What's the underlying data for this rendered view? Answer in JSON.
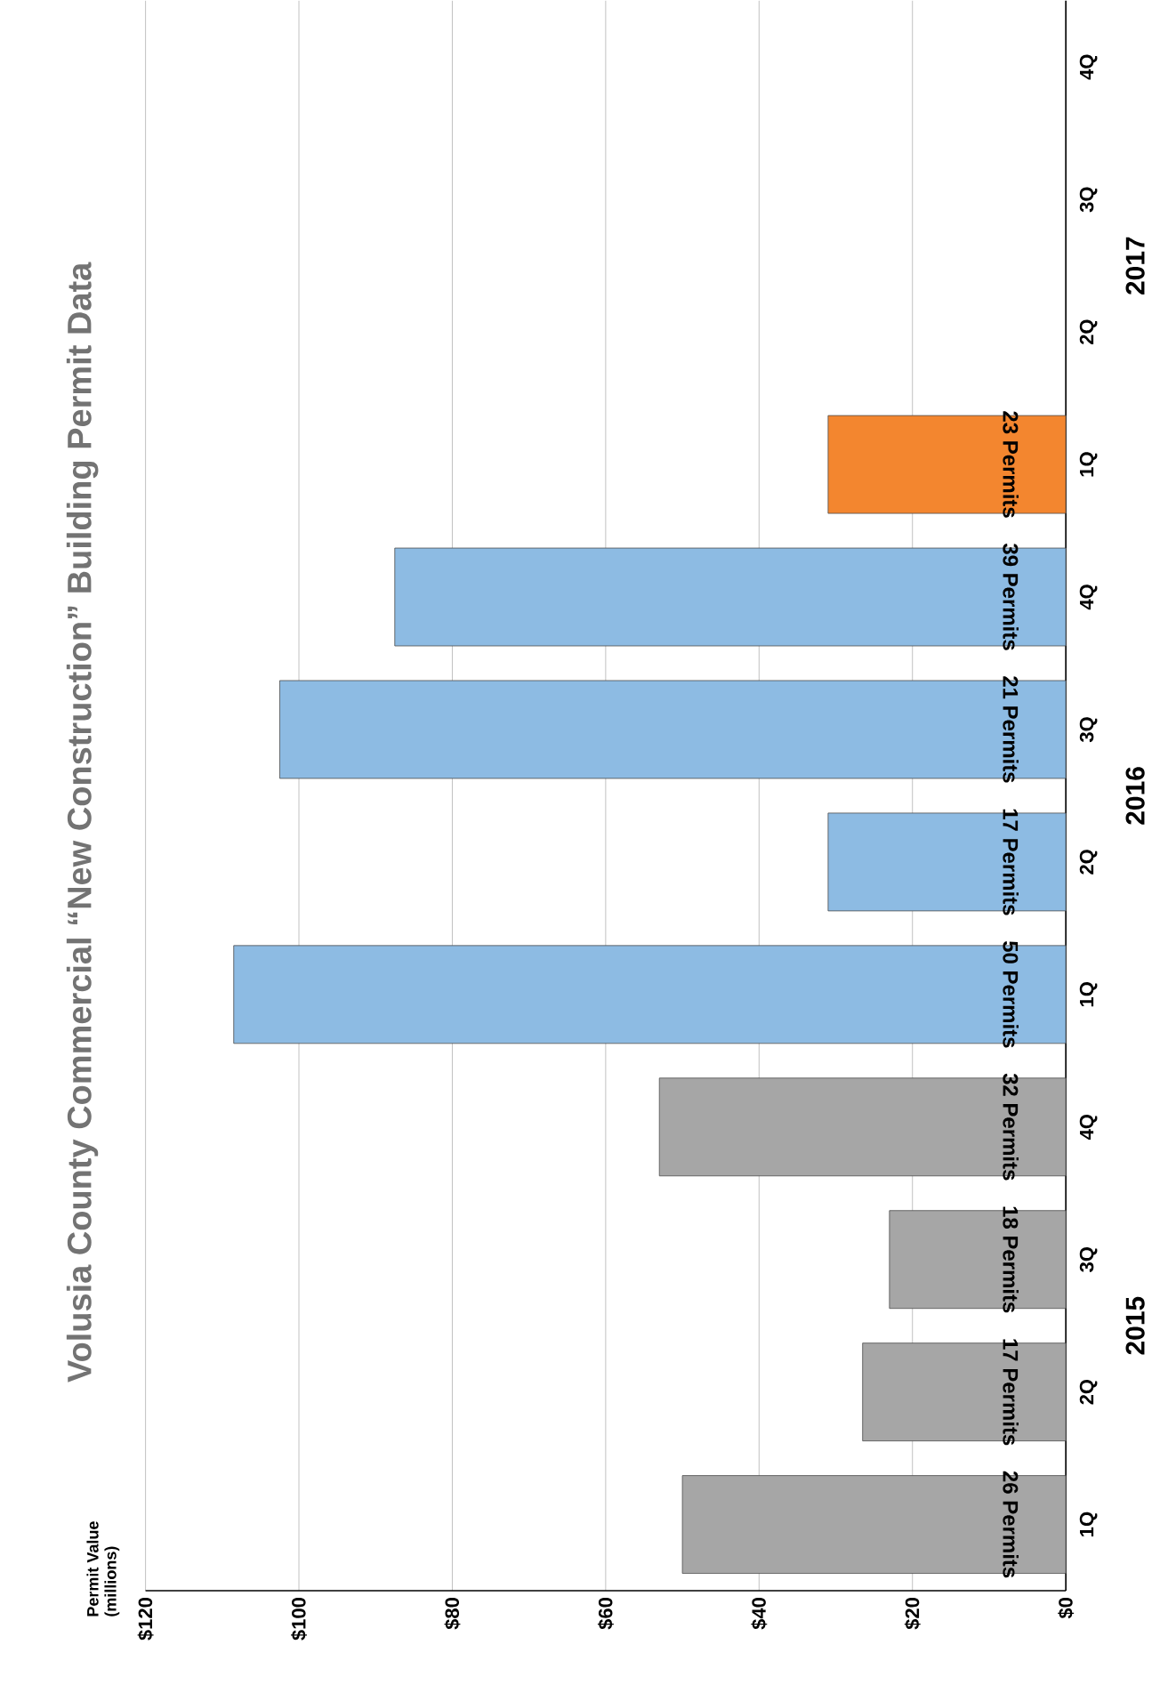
{
  "chart_data": {
    "type": "bar",
    "orientation": "horizontal",
    "title": "Volusia County Commercial “New Construction” Building Permit Data",
    "categories": [
      "4Q",
      "3Q",
      "2Q",
      "1Q",
      "4Q",
      "3Q",
      "2Q",
      "1Q",
      "4Q",
      "3Q",
      "2Q",
      "1Q"
    ],
    "values": [
      null,
      null,
      null,
      31,
      87.5,
      102.5,
      31,
      108.5,
      53,
      23,
      26.5,
      50
    ],
    "colors": [
      "#f3862f",
      "#f3862f",
      "#f3862f",
      "#f3862f",
      "#8dbbe3",
      "#8dbbe3",
      "#8dbbe3",
      "#8dbbe3",
      "#a6a6a6",
      "#a6a6a6",
      "#a6a6a6",
      "#a6a6a6"
    ],
    "annotations": [
      "2017",
      "2016",
      "2015",
      "23 Permits",
      "39 Permits",
      "21 Permits",
      "17 Permits",
      "50 Permits",
      "32 Permits",
      "18 Permits",
      "17 Permits",
      "26 Permits",
      "Permit Value (millions)"
    ],
    "xlim": [
      120,
      0
    ],
    "xticks": [
      {
        "value": 0,
        "label": "$0"
      },
      {
        "value": 20,
        "label": "$20"
      },
      {
        "value": 40,
        "label": "$40"
      },
      {
        "value": 60,
        "label": "$60"
      },
      {
        "value": 80,
        "label": "$80"
      },
      {
        "value": 100,
        "label": "$100"
      },
      {
        "value": 120,
        "label": "$120"
      }
    ],
    "grid": "x"
  }
}
